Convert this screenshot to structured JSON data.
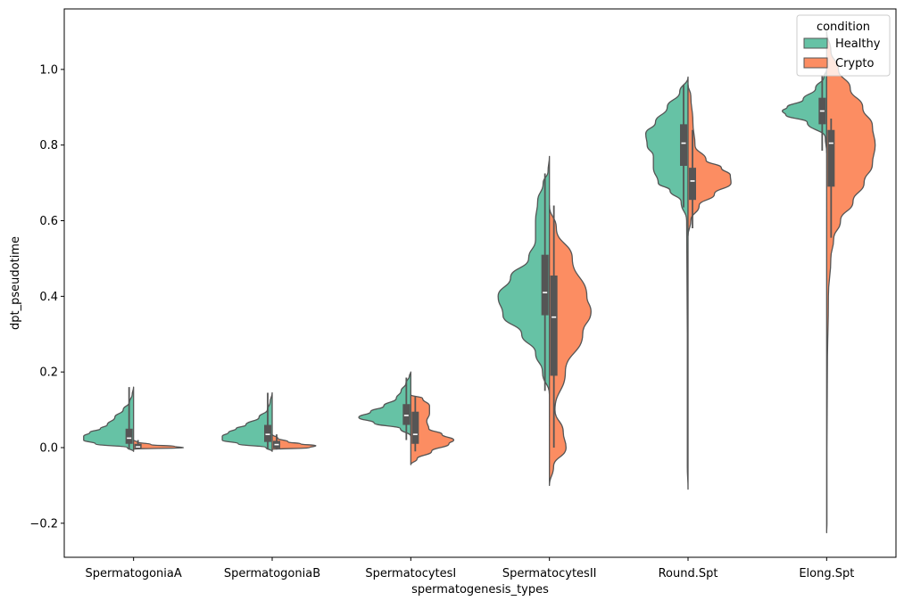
{
  "chart_data": {
    "type": "violin",
    "split": true,
    "xlabel": "spermatogenesis_types",
    "ylabel": "dpt_pseudotime",
    "ylim": [
      -0.29,
      1.16
    ],
    "yticks": [
      -0.2,
      0.0,
      0.2,
      0.4,
      0.6,
      0.8,
      1.0
    ],
    "ytick_labels": [
      "−0.2",
      "0.0",
      "0.2",
      "0.4",
      "0.6",
      "0.8",
      "1.0"
    ],
    "categories": [
      "SpermatogoniaA",
      "SpermatogoniaB",
      "SpermatocytesI",
      "SpermatocytesII",
      "Round.Spt",
      "Elong.Spt"
    ],
    "grid": false,
    "legend": {
      "title": "condition",
      "placement": "top-right",
      "entries": [
        {
          "name": "Healthy",
          "color": "#66c2a5"
        },
        {
          "name": "Crypto",
          "color": "#fc8d62"
        }
      ]
    },
    "series": [
      {
        "name": "Healthy",
        "color": "#66c2a5",
        "side": "left",
        "violins": [
          {
            "category": "SpermatogoniaA",
            "kde": [
              [
                -0.01,
                0
              ],
              [
                0.0,
                0.09
              ],
              [
                0.01,
                0.55
              ],
              [
                0.02,
                0.72
              ],
              [
                0.03,
                0.72
              ],
              [
                0.04,
                0.63
              ],
              [
                0.05,
                0.48
              ],
              [
                0.06,
                0.38
              ],
              [
                0.08,
                0.27
              ],
              [
                0.1,
                0.15
              ],
              [
                0.12,
                0.06
              ],
              [
                0.14,
                0.02
              ],
              [
                0.16,
                0
              ]
            ],
            "box": {
              "q1": 0.01,
              "median": 0.025,
              "q3": 0.05,
              "whisker_low": -0.005,
              "whisker_high": 0.16
            }
          },
          {
            "category": "SpermatogoniaB",
            "kde": [
              [
                -0.01,
                0
              ],
              [
                0.0,
                0.09
              ],
              [
                0.01,
                0.49
              ],
              [
                0.02,
                0.72
              ],
              [
                0.03,
                0.72
              ],
              [
                0.04,
                0.63
              ],
              [
                0.05,
                0.52
              ],
              [
                0.06,
                0.38
              ],
              [
                0.08,
                0.19
              ],
              [
                0.1,
                0.07
              ],
              [
                0.12,
                0.03
              ],
              [
                0.145,
                0
              ]
            ],
            "box": {
              "q1": 0.015,
              "median": 0.035,
              "q3": 0.06,
              "whisker_low": -0.005,
              "whisker_high": 0.145
            }
          },
          {
            "category": "SpermatocytesI",
            "kde": [
              [
                0.03,
                0
              ],
              [
                0.05,
                0.15
              ],
              [
                0.065,
                0.53
              ],
              [
                0.08,
                0.75
              ],
              [
                0.095,
                0.58
              ],
              [
                0.11,
                0.39
              ],
              [
                0.13,
                0.21
              ],
              [
                0.15,
                0.14
              ],
              [
                0.17,
                0.07
              ],
              [
                0.19,
                0.02
              ],
              [
                0.2,
                0
              ]
            ],
            "box": {
              "q1": 0.06,
              "median": 0.085,
              "q3": 0.115,
              "whisker_low": 0.02,
              "whisker_high": 0.185
            }
          },
          {
            "category": "SpermatocytesII",
            "kde": [
              [
                0.14,
                0
              ],
              [
                0.2,
                0.1
              ],
              [
                0.25,
                0.2
              ],
              [
                0.3,
                0.4
              ],
              [
                0.35,
                0.67
              ],
              [
                0.4,
                0.74
              ],
              [
                0.45,
                0.56
              ],
              [
                0.5,
                0.3
              ],
              [
                0.55,
                0.2
              ],
              [
                0.6,
                0.2
              ],
              [
                0.65,
                0.17
              ],
              [
                0.7,
                0.09
              ],
              [
                0.73,
                0.02
              ],
              [
                0.77,
                0
              ]
            ],
            "box": {
              "q1": 0.35,
              "median": 0.41,
              "q3": 0.51,
              "whisker_low": 0.15,
              "whisker_high": 0.725
            }
          },
          {
            "category": "Round.Spt",
            "kde": [
              [
                -0.11,
                0
              ],
              [
                -0.05,
                0.01
              ],
              [
                0.1,
                0.01
              ],
              [
                0.3,
                0.01
              ],
              [
                0.6,
                0.02
              ],
              [
                0.65,
                0.1
              ],
              [
                0.68,
                0.26
              ],
              [
                0.7,
                0.43
              ],
              [
                0.74,
                0.5
              ],
              [
                0.77,
                0.5
              ],
              [
                0.8,
                0.59
              ],
              [
                0.83,
                0.61
              ],
              [
                0.86,
                0.47
              ],
              [
                0.9,
                0.3
              ],
              [
                0.94,
                0.12
              ],
              [
                0.98,
                0
              ]
            ],
            "box": {
              "q1": 0.745,
              "median": 0.805,
              "q3": 0.855,
              "whisker_low": 0.635,
              "whisker_high": 0.96
            }
          },
          {
            "category": "Elong.Spt",
            "kde": [
              [
                0.78,
                0
              ],
              [
                0.82,
                0.02
              ],
              [
                0.86,
                0.28
              ],
              [
                0.88,
                0.59
              ],
              [
                0.89,
                0.64
              ],
              [
                0.9,
                0.57
              ],
              [
                0.92,
                0.34
              ],
              [
                0.95,
                0.16
              ],
              [
                0.98,
                0.04
              ],
              [
                1.0,
                0
              ]
            ],
            "box": {
              "q1": 0.855,
              "median": 0.89,
              "q3": 0.925,
              "whisker_low": 0.785,
              "whisker_high": 0.985
            }
          }
        ]
      },
      {
        "name": "Crypto",
        "color": "#fc8d62",
        "side": "right",
        "violins": [
          {
            "category": "SpermatogoniaA",
            "kde": [
              [
                -0.004,
                0
              ],
              [
                0.0,
                0.72
              ],
              [
                0.003,
                0.6
              ],
              [
                0.008,
                0.25
              ],
              [
                0.015,
                0.05
              ],
              [
                0.02,
                0
              ]
            ],
            "box": {
              "q1": -0.002,
              "median": 0.002,
              "q3": 0.01,
              "whisker_low": -0.004,
              "whisker_high": 0.02
            }
          },
          {
            "category": "SpermatogoniaB",
            "kde": [
              [
                -0.005,
                0
              ],
              [
                0.0,
                0.54
              ],
              [
                0.005,
                0.63
              ],
              [
                0.01,
                0.41
              ],
              [
                0.015,
                0.23
              ],
              [
                0.025,
                0.08
              ],
              [
                0.035,
                0
              ]
            ],
            "box": {
              "q1": -0.002,
              "median": 0.008,
              "q3": 0.018,
              "whisker_low": -0.005,
              "whisker_high": 0.035
            }
          },
          {
            "category": "SpermatocytesI",
            "kde": [
              [
                -0.045,
                0
              ],
              [
                -0.03,
                0.09
              ],
              [
                -0.01,
                0.3
              ],
              [
                0.01,
                0.55
              ],
              [
                0.02,
                0.62
              ],
              [
                0.035,
                0.45
              ],
              [
                0.05,
                0.26
              ],
              [
                0.07,
                0.23
              ],
              [
                0.09,
                0.27
              ],
              [
                0.11,
                0.27
              ],
              [
                0.13,
                0.17
              ],
              [
                0.14,
                0
              ]
            ],
            "box": {
              "q1": 0.01,
              "median": 0.035,
              "q3": 0.095,
              "whisker_low": -0.01,
              "whisker_high": 0.135
            }
          },
          {
            "category": "SpermatocytesII",
            "kde": [
              [
                -0.1,
                0
              ],
              [
                -0.05,
                0.06
              ],
              [
                0.0,
                0.24
              ],
              [
                0.04,
                0.2
              ],
              [
                0.1,
                0.08
              ],
              [
                0.2,
                0.23
              ],
              [
                0.3,
                0.48
              ],
              [
                0.36,
                0.6
              ],
              [
                0.4,
                0.54
              ],
              [
                0.5,
                0.33
              ],
              [
                0.58,
                0.1
              ],
              [
                0.64,
                0
              ]
            ],
            "box": {
              "q1": 0.19,
              "median": 0.345,
              "q3": 0.455,
              "whisker_low": 0.0,
              "whisker_high": 0.64
            }
          },
          {
            "category": "Round.Spt",
            "kde": [
              [
                0.56,
                0
              ],
              [
                0.6,
                0.04
              ],
              [
                0.64,
                0.16
              ],
              [
                0.67,
                0.38
              ],
              [
                0.7,
                0.62
              ],
              [
                0.72,
                0.61
              ],
              [
                0.74,
                0.48
              ],
              [
                0.76,
                0.26
              ],
              [
                0.8,
                0.1
              ],
              [
                0.86,
                0.07
              ],
              [
                0.93,
                0.04
              ],
              [
                0.96,
                0
              ]
            ],
            "box": {
              "q1": 0.655,
              "median": 0.705,
              "q3": 0.74,
              "whisker_low": 0.58,
              "whisker_high": 0.84
            }
          },
          {
            "category": "Elong.Spt",
            "kde": [
              [
                -0.225,
                0
              ],
              [
                -0.2,
                0.004
              ],
              [
                0.0,
                0.004
              ],
              [
                0.2,
                0.01
              ],
              [
                0.4,
                0.025
              ],
              [
                0.5,
                0.06
              ],
              [
                0.55,
                0.1
              ],
              [
                0.6,
                0.2
              ],
              [
                0.65,
                0.38
              ],
              [
                0.7,
                0.54
              ],
              [
                0.75,
                0.66
              ],
              [
                0.8,
                0.7
              ],
              [
                0.85,
                0.66
              ],
              [
                0.9,
                0.52
              ],
              [
                0.95,
                0.34
              ],
              [
                1.0,
                0.17
              ],
              [
                1.05,
                0.06
              ],
              [
                1.1,
                0
              ]
            ],
            "box": {
              "q1": 0.69,
              "median": 0.805,
              "q3": 0.84,
              "whisker_low": 0.555,
              "whisker_high": 0.87
            }
          }
        ]
      }
    ]
  }
}
